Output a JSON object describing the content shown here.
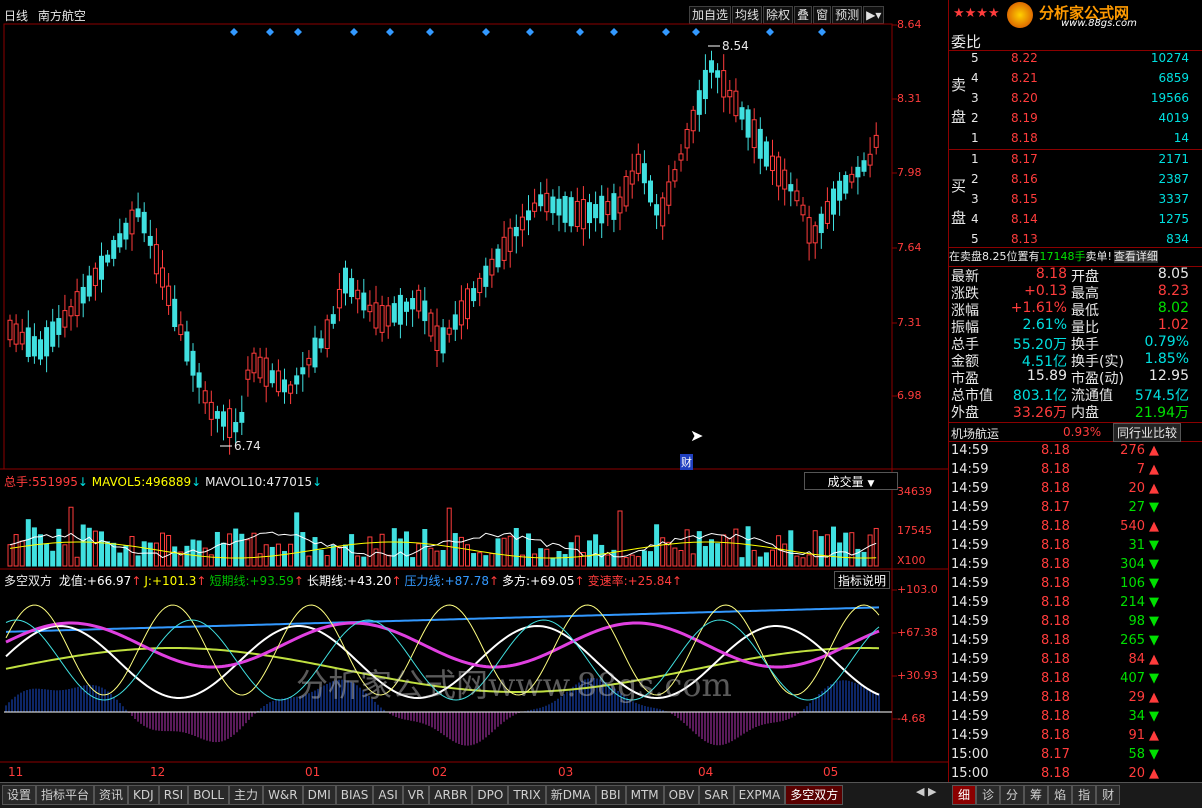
{
  "header": {
    "period": "日线",
    "stock_name": "南方航空",
    "buttons": [
      "加自选",
      "均线",
      "除权",
      "叠",
      "窗",
      "预测"
    ],
    "logo_text": "分析家公式网",
    "logo_url": "www.88gs.com"
  },
  "price_axis": [
    "8.64",
    "8.31",
    "7.98",
    "7.64",
    "7.31",
    "6.98"
  ],
  "main_chart": {
    "high_marker": "8.54",
    "low_marker": "6.74",
    "cai_marker": "财"
  },
  "volume_pane": {
    "total_label": "总手:",
    "total_value": "551995",
    "ma5_label": "MAVOL5:",
    "ma5_value": "496889",
    "ma10_label": "MAVOL10:",
    "ma10_value": "477015",
    "selector": "成交量",
    "axis": [
      "34639",
      "17545",
      "X100"
    ]
  },
  "indicator_pane": {
    "name": "多空双方",
    "items": [
      {
        "label": "龙值:",
        "value": "+66.97",
        "color": "#ffffff"
      },
      {
        "label": "J:",
        "value": "+101.3",
        "color": "#ffff00"
      },
      {
        "label": "短期线:",
        "value": "+93.59",
        "color": "#00c000"
      },
      {
        "label": "长期线:",
        "value": "+43.20",
        "color": "#ffffff"
      },
      {
        "label": "压力线:",
        "value": "+87.78",
        "color": "#3399ff"
      },
      {
        "label": "多方:",
        "value": "+69.05",
        "color": "#ffffff"
      },
      {
        "label": "变速率:",
        "value": "+25.84",
        "color": "#ff3c3c"
      }
    ],
    "help_button": "指标说明",
    "axis": [
      "+103.0",
      "+67.38",
      "+30.93",
      "-4.68"
    ],
    "watermark": "分析家公式网www.88gs.com"
  },
  "date_axis": [
    "11",
    "12",
    "01",
    "02",
    "03",
    "04",
    "05"
  ],
  "order_book": {
    "header": "委比",
    "sell_label": [
      "卖",
      "盘"
    ],
    "buy_label": [
      "买",
      "盘"
    ],
    "sell": [
      {
        "level": "5",
        "price": "8.22",
        "volume": "10274"
      },
      {
        "level": "4",
        "price": "8.21",
        "volume": "6859"
      },
      {
        "level": "3",
        "price": "8.20",
        "volume": "19566"
      },
      {
        "level": "2",
        "price": "8.19",
        "volume": "4019"
      },
      {
        "level": "1",
        "price": "8.18",
        "volume": "14"
      }
    ],
    "buy": [
      {
        "level": "1",
        "price": "8.17",
        "volume": "2171"
      },
      {
        "level": "2",
        "price": "8.16",
        "volume": "2387"
      },
      {
        "level": "3",
        "price": "8.15",
        "volume": "3337"
      },
      {
        "level": "4",
        "price": "8.14",
        "volume": "1275"
      },
      {
        "level": "5",
        "price": "8.13",
        "volume": "834"
      }
    ],
    "notice_prefix": "在卖盘8.25位置有",
    "notice_volume": "17148手",
    "notice_suffix": "卖单!",
    "notice_link": "查看详细"
  },
  "stats": [
    {
      "l1": "最新",
      "v1": "8.18",
      "c1": "#ff3c3c",
      "l2": "开盘",
      "v2": "8.05",
      "c2": "#e8e8e8"
    },
    {
      "l1": "涨跌",
      "v1": "+0.13",
      "c1": "#ff3c3c",
      "l2": "最高",
      "v2": "8.23",
      "c2": "#ff3c3c"
    },
    {
      "l1": "涨幅",
      "v1": "+1.61%",
      "c1": "#ff3c3c",
      "l2": "最低",
      "v2": "8.02",
      "c2": "#00e000"
    },
    {
      "l1": "振幅",
      "v1": "2.61%",
      "c1": "#00e0e0",
      "l2": "量比",
      "v2": "1.02",
      "c2": "#ff3c3c"
    },
    {
      "l1": "总手",
      "v1": "55.20万",
      "c1": "#00e0e0",
      "l2": "换手",
      "v2": "0.79%",
      "c2": "#00e0e0"
    },
    {
      "l1": "金额",
      "v1": "4.51亿",
      "c1": "#00e0e0",
      "l2": "换手(实)",
      "v2": "1.85%",
      "c2": "#00e0e0"
    },
    {
      "l1": "市盈",
      "v1": "15.89",
      "c1": "#e8e8e8",
      "l2": "市盈(动)",
      "v2": "12.95",
      "c2": "#e8e8e8"
    },
    {
      "l1": "总市值",
      "v1": "803.1亿",
      "c1": "#00e0e0",
      "l2": "流通值",
      "v2": "574.5亿",
      "c2": "#00e0e0"
    },
    {
      "l1": "外盘",
      "v1": "33.26万",
      "c1": "#ff3c3c",
      "l2": "内盘",
      "v2": "21.94万",
      "c2": "#00e000"
    }
  ],
  "industry": {
    "name": "机场航运",
    "change": "0.93%",
    "compare_button": "同行业比较"
  },
  "ticks": [
    {
      "time": "14:59",
      "price": "8.18",
      "volume": "276",
      "dir": "up"
    },
    {
      "time": "14:59",
      "price": "8.18",
      "volume": "7",
      "dir": "up"
    },
    {
      "time": "14:59",
      "price": "8.18",
      "volume": "20",
      "dir": "up"
    },
    {
      "time": "14:59",
      "price": "8.17",
      "volume": "27",
      "dir": "down"
    },
    {
      "time": "14:59",
      "price": "8.18",
      "volume": "540",
      "dir": "up"
    },
    {
      "time": "14:59",
      "price": "8.18",
      "volume": "31",
      "dir": "down"
    },
    {
      "time": "14:59",
      "price": "8.18",
      "volume": "304",
      "dir": "down"
    },
    {
      "time": "14:59",
      "price": "8.18",
      "volume": "106",
      "dir": "down"
    },
    {
      "time": "14:59",
      "price": "8.18",
      "volume": "214",
      "dir": "down"
    },
    {
      "time": "14:59",
      "price": "8.18",
      "volume": "98",
      "dir": "down"
    },
    {
      "time": "14:59",
      "price": "8.18",
      "volume": "265",
      "dir": "down"
    },
    {
      "time": "14:59",
      "price": "8.18",
      "volume": "84",
      "dir": "up"
    },
    {
      "time": "14:59",
      "price": "8.18",
      "volume": "407",
      "dir": "down"
    },
    {
      "time": "14:59",
      "price": "8.18",
      "volume": "29",
      "dir": "up"
    },
    {
      "time": "14:59",
      "price": "8.18",
      "volume": "34",
      "dir": "down"
    },
    {
      "time": "14:59",
      "price": "8.18",
      "volume": "91",
      "dir": "up"
    },
    {
      "time": "15:00",
      "price": "8.17",
      "volume": "58",
      "dir": "down"
    },
    {
      "time": "15:00",
      "price": "8.18",
      "volume": "20",
      "dir": "up"
    }
  ],
  "bottom_tabs": [
    "设置",
    "指标平台",
    "资讯",
    "KDJ",
    "RSI",
    "BOLL",
    "主力",
    "W&R",
    "DMI",
    "BIAS",
    "ASI",
    "VR",
    "ARBR",
    "DPO",
    "TRIX",
    "新DMA",
    "BBI",
    "MTM",
    "OBV",
    "SAR",
    "EXPMA",
    "多空双方"
  ],
  "right_tabs": [
    "细",
    "诊",
    "分",
    "筹",
    "焰",
    "指",
    "财"
  ]
}
